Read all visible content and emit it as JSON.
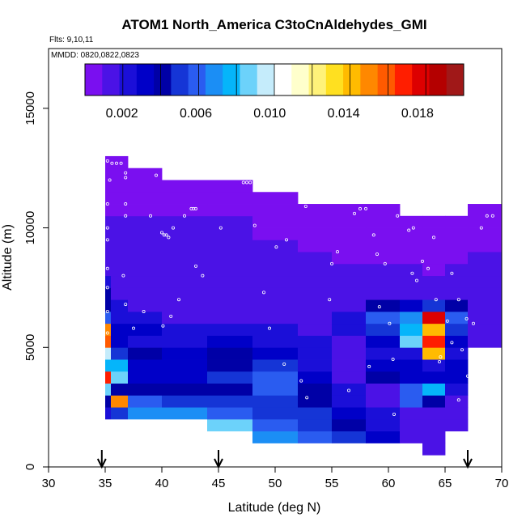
{
  "chart_data": {
    "type": "heatmap",
    "title": "ATOM1 North_America C3toCnAldehydes_GMI",
    "subtitle_flights": "Flts: 9,10,11",
    "subtitle_dates": "MMDD: 0820,0822,0823",
    "xlabel": "Latitude (deg N)",
    "ylabel": "Altitude (m)",
    "xlim": [
      30,
      70
    ],
    "ylim": [
      0,
      17500
    ],
    "x_ticks": [
      "30",
      "35",
      "40",
      "45",
      "50",
      "55",
      "60",
      "65",
      "70"
    ],
    "y_ticks": [
      "0",
      "5000",
      "10000",
      "15000"
    ],
    "colorbar": {
      "range": [
        0,
        0.0205
      ],
      "ticks": [
        "0.002",
        "0.006",
        "0.010",
        "0.014",
        "0.018"
      ],
      "tick_values": [
        0.002,
        0.006,
        0.01,
        0.014,
        0.018
      ],
      "colors": [
        "#7a0ff0",
        "#4b12e6",
        "#1b0fd8",
        "#0000c8",
        "#0000a6",
        "#1535d6",
        "#2a5cf0",
        "#1b8ef5",
        "#05b5fa",
        "#6cd2fa",
        "#c5ecfb",
        "#ffffff",
        "#ffffcc",
        "#fff27a",
        "#ffe020",
        "#ffbb00",
        "#ff8800",
        "#ff5a00",
        "#ff1e00",
        "#dd0000",
        "#b40000",
        "#a01818"
      ]
    },
    "profile_markers_latitude": [
      34.7,
      45,
      67
    ],
    "columns": [
      {
        "lat": [
          35,
          35.5
        ],
        "ymin": 2000,
        "ymax": 13000,
        "values": [
          0.0025,
          0.004,
          0.009,
          0.017,
          0.008,
          0.01,
          0.016,
          0.015,
          0.006,
          0.0045,
          0.004,
          0.0025,
          0.0015,
          0.0012,
          0.0011,
          0.001,
          0.001,
          0.0009,
          0.0009,
          0.0009,
          0.0008,
          0.0008
        ]
      },
      {
        "lat": [
          35.5,
          37
        ],
        "ymin": 1500,
        "ymax": 12800,
        "values": [
          0.011,
          0.005,
          0.015,
          0.004,
          0.009,
          0.008,
          0.005,
          0.003,
          0.003,
          0.0025,
          0.002,
          0.0015,
          0.0012,
          0.0011,
          0.001,
          0.001,
          0.001,
          0.0009,
          0.0009,
          0.0009,
          0.0008,
          0.0008
        ]
      },
      {
        "lat": [
          37,
          40
        ],
        "ymin": 1500,
        "ymax": 12500,
        "values": [
          0.011,
          0.007,
          0.006,
          0.004,
          0.003,
          0.0035,
          0.004,
          0.0025,
          0.003,
          0.002,
          0.0018,
          0.0015,
          0.0012,
          0.0011,
          0.001,
          0.0012,
          0.0014,
          0.001,
          0.0009,
          0.0009,
          0.0009,
          0.0008
        ]
      },
      {
        "lat": [
          40,
          44
        ],
        "ymin": 1500,
        "ymax": 12000,
        "values": [
          0.011,
          0.007,
          0.005,
          0.004,
          0.003,
          0.0035,
          0.003,
          0.0025,
          0.002,
          0.0018,
          0.0015,
          0.0013,
          0.0012,
          0.0011,
          0.001,
          0.0012,
          0.0018,
          0.0012,
          0.001,
          0.0009,
          0.0009,
          0.0008
        ]
      },
      {
        "lat": [
          44,
          48
        ],
        "ymin": 1500,
        "ymax": 11800,
        "values": [
          0.009,
          0.006,
          0.005,
          0.004,
          0.005,
          0.0045,
          0.004,
          0.003,
          0.0022,
          0.0018,
          0.0015,
          0.0013,
          0.0012,
          0.0011,
          0.001,
          0.0011,
          0.0012,
          0.0011,
          0.001,
          0.0009,
          0.0009,
          0.0008
        ]
      },
      {
        "lat": [
          48,
          52
        ],
        "ymin": 1000,
        "ymax": 11500,
        "values": [
          0.007,
          0.006,
          0.005,
          0.0055,
          0.006,
          0.006,
          0.005,
          0.003,
          0.0025,
          0.002,
          0.0017,
          0.0014,
          0.0012,
          0.0011,
          0.001,
          0.001,
          0.0011,
          0.001,
          0.0009,
          0.0009,
          0.0009,
          0.0008
        ]
      },
      {
        "lat": [
          52,
          55
        ],
        "ymin": 1000,
        "ymax": 11200,
        "values": [
          0.006,
          0.005,
          0.005,
          0.004,
          0.004,
          0.0035,
          0.003,
          0.0025,
          0.0022,
          0.002,
          0.0018,
          0.0015,
          0.0013,
          0.0012,
          0.0011,
          0.001,
          0.0011,
          0.001,
          0.0009,
          0.0009,
          0.0009,
          0.0008
        ]
      },
      {
        "lat": [
          55,
          58
        ],
        "ymin": 1000,
        "ymax": 11000,
        "values": [
          0.005,
          0.004,
          0.003,
          0.0025,
          0.002,
          0.0018,
          0.0016,
          0.0015,
          0.0014,
          0.0018,
          0.0025,
          0.002,
          0.0015,
          0.0012,
          0.0011,
          0.001,
          0.001,
          0.0009,
          0.0009,
          0.0009,
          0.0008,
          0.0008
        ]
      },
      {
        "lat": [
          58,
          61
        ],
        "ymin": 1000,
        "ymax": 10800,
        "values": [
          0.003,
          0.0025,
          0.002,
          0.0018,
          0.0016,
          0.0015,
          0.004,
          0.003,
          0.0025,
          0.003,
          0.005,
          0.006,
          0.004,
          0.0015,
          0.0012,
          0.0011,
          0.001,
          0.0009,
          0.0009,
          0.0009,
          0.0008,
          0.0008
        ]
      },
      {
        "lat": [
          61,
          63
        ],
        "ymin": 1000,
        "ymax": 10500,
        "values": [
          0.0018,
          0.0016,
          0.0015,
          0.0014,
          0.006,
          0.006,
          0.0035,
          0.003,
          0.0025,
          0.009,
          0.007,
          0.008,
          0.007,
          0.003,
          0.0015,
          0.0011,
          0.001,
          0.0009,
          0.0009,
          0.0009,
          0.0008,
          0.0008
        ]
      },
      {
        "lat": [
          63,
          65
        ],
        "ymin": 500,
        "ymax": 10500,
        "values": [
          0.0016,
          0.0015,
          0.0014,
          0.0013,
          0.004,
          0.009,
          0.008,
          0.003,
          0.0025,
          0.014,
          0.017,
          0.014,
          0.018,
          0.005,
          0.0015,
          0.0011,
          0.001,
          0.0009,
          0.0009,
          0.0009,
          0.0008,
          0.0008
        ]
      },
      {
        "lat": [
          65,
          67
        ],
        "ymin": 1500,
        "ymax": 10500,
        "values": [
          0.0015,
          0.0014,
          0.0013,
          0.0012,
          0.0025,
          0.003,
          0.003,
          0.0025,
          0.0022,
          0.003,
          0.005,
          0.006,
          0.004,
          0.002,
          0.0015,
          0.0011,
          0.001,
          0.0009,
          0.0009,
          0.0009,
          0.0008,
          0.0008
        ]
      },
      {
        "lat": [
          67,
          70
        ],
        "ymin": 5000,
        "ymax": 10800,
        "values": [
          0.0013,
          0.0012,
          0.0012,
          0.0011,
          0.0011,
          0.001,
          0.001,
          0.001,
          0.0009,
          0.0009,
          0.0009,
          0.0008
        ]
      }
    ],
    "sample_points": [
      [
        35.2,
        12800
      ],
      [
        35.6,
        12700
      ],
      [
        36,
        12700
      ],
      [
        36.4,
        12700
      ],
      [
        36.8,
        12300
      ],
      [
        36.8,
        12100
      ],
      [
        35.4,
        12000
      ],
      [
        35.2,
        11000
      ],
      [
        35.2,
        10000
      ],
      [
        35.2,
        9500
      ],
      [
        35.2,
        8300
      ],
      [
        35.2,
        7500
      ],
      [
        35.2,
        6500
      ],
      [
        35.2,
        5600
      ],
      [
        36.8,
        11000
      ],
      [
        36.8,
        10500
      ],
      [
        36.6,
        8000
      ],
      [
        36.8,
        6800
      ],
      [
        37.5,
        5800
      ],
      [
        38.4,
        6500
      ],
      [
        39,
        10500
      ],
      [
        39.5,
        12200
      ],
      [
        40,
        9800
      ],
      [
        40.2,
        9700
      ],
      [
        40.4,
        9700
      ],
      [
        40.6,
        9600
      ],
      [
        41,
        10000
      ],
      [
        42,
        10500
      ],
      [
        42.6,
        10800
      ],
      [
        42.8,
        10800
      ],
      [
        43,
        10800
      ],
      [
        43,
        8400
      ],
      [
        41.5,
        7000
      ],
      [
        40.1,
        5900
      ],
      [
        40.8,
        6300
      ],
      [
        43.6,
        8000
      ],
      [
        45.2,
        10000
      ],
      [
        47.2,
        11900
      ],
      [
        47.5,
        11900
      ],
      [
        47.8,
        11900
      ],
      [
        48.2,
        10100
      ],
      [
        49,
        7300
      ],
      [
        49.5,
        5800
      ],
      [
        50.1,
        9200
      ],
      [
        50.8,
        4300
      ],
      [
        51,
        9500
      ],
      [
        52.7,
        10900
      ],
      [
        52.3,
        3600
      ],
      [
        52.8,
        2900
      ],
      [
        54,
        11200
      ],
      [
        55,
        8500
      ],
      [
        54.8,
        7000
      ],
      [
        55.5,
        9000
      ],
      [
        56.5,
        3200
      ],
      [
        57,
        10600
      ],
      [
        57.5,
        10800
      ],
      [
        58,
        10800
      ],
      [
        58.3,
        4200
      ],
      [
        58.7,
        9700
      ],
      [
        59,
        8900
      ],
      [
        59.2,
        6700
      ],
      [
        59.7,
        8500
      ],
      [
        60.5,
        2200
      ],
      [
        60.1,
        6000
      ],
      [
        60.4,
        4500
      ],
      [
        60.8,
        10500
      ],
      [
        61.2,
        10700
      ],
      [
        61.5,
        10800
      ],
      [
        62.2,
        10000
      ],
      [
        61.8,
        9900
      ],
      [
        62.1,
        8100
      ],
      [
        62.5,
        7800
      ],
      [
        63,
        8600
      ],
      [
        63.5,
        8300
      ],
      [
        64,
        9600
      ],
      [
        64.2,
        7000
      ],
      [
        64.5,
        4400
      ],
      [
        64.6,
        4600
      ],
      [
        65.6,
        8100
      ],
      [
        65.2,
        6100
      ],
      [
        65.6,
        5200
      ],
      [
        66.2,
        7000
      ],
      [
        66.9,
        6200
      ],
      [
        66.5,
        4900
      ],
      [
        67,
        3800
      ],
      [
        67.2,
        2300
      ],
      [
        67.5,
        6000
      ],
      [
        68.2,
        10000
      ],
      [
        68.7,
        10500
      ],
      [
        69.2,
        10500
      ],
      [
        65.3,
        700
      ],
      [
        66.2,
        2800
      ]
    ]
  }
}
